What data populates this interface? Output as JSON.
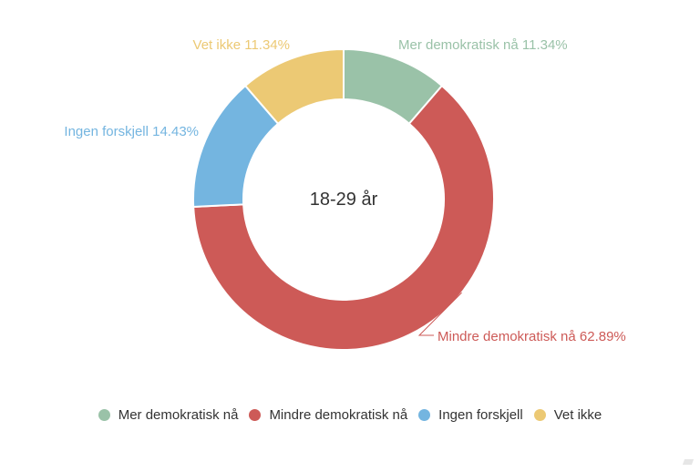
{
  "chart_data": {
    "type": "pie",
    "variant": "donut",
    "center_label": "18-29 år",
    "categories": [
      "Mer demokratisk nå",
      "Mindre demokratisk nå",
      "Ingen forskjell",
      "Vet ikke"
    ],
    "values": [
      11.34,
      62.89,
      14.43,
      11.34
    ],
    "value_suffix": "%",
    "colors": [
      "#9ac2a8",
      "#cd5a57",
      "#74b5e0",
      "#ecc974"
    ],
    "data_labels": [
      "Mer demokratisk nå 11.34%",
      "Mindre demokratisk nå 62.89%",
      "Ingen forskjell 14.43%",
      "Vet ikke 11.34%"
    ],
    "legend": {
      "position": "bottom",
      "entries": [
        "Mer demokratisk nå",
        "Mindre demokratisk nå",
        "Ingen forskjell",
        "Vet ikke"
      ]
    }
  }
}
